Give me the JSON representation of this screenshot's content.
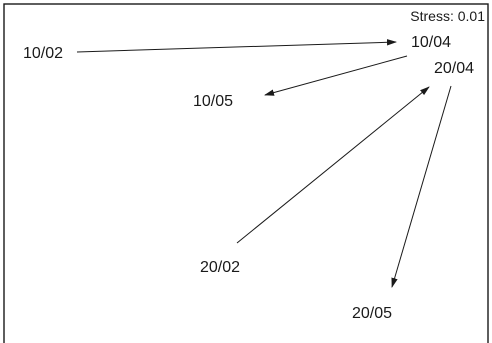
{
  "stress": {
    "label": "Stress: 0.01"
  },
  "nodes": [
    {
      "id": "10-02",
      "label": "10/02"
    },
    {
      "id": "10-04",
      "label": "10/04"
    },
    {
      "id": "20-04",
      "label": "20/04"
    },
    {
      "id": "10-05",
      "label": "10/05"
    },
    {
      "id": "20-02",
      "label": "20/02"
    },
    {
      "id": "20-05",
      "label": "20/05"
    }
  ],
  "arrows": [
    {
      "from": "10/02",
      "to": "10/04"
    },
    {
      "from": "10/04",
      "to": "10/05"
    },
    {
      "from": "20/02",
      "to": "20/04"
    },
    {
      "from": "20/04",
      "to": "20/05"
    }
  ]
}
